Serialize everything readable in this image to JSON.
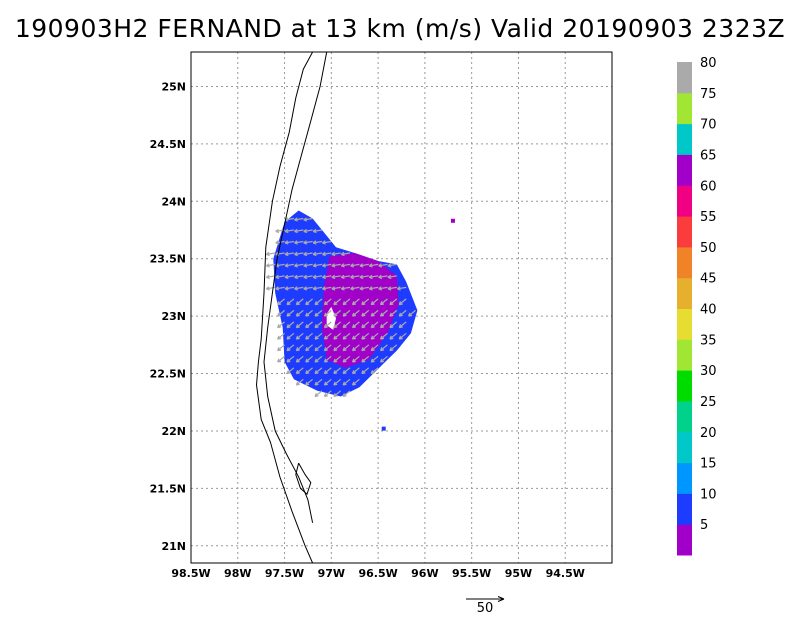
{
  "title": "190903H2 FERNAND at 13 km (m/s) Valid 20190903 2323Z",
  "map": {
    "lon_range": [
      -98.5,
      -94.0
    ],
    "lat_range": [
      20.85,
      25.3
    ],
    "x_ticks": [
      {
        "lon": -98.5,
        "label": "98.5W"
      },
      {
        "lon": -98.0,
        "label": "98W"
      },
      {
        "lon": -97.5,
        "label": "97.5W"
      },
      {
        "lon": -97.0,
        "label": "97W"
      },
      {
        "lon": -96.5,
        "label": "96.5W"
      },
      {
        "lon": -96.0,
        "label": "96W"
      },
      {
        "lon": -95.5,
        "label": "95.5W"
      },
      {
        "lon": -95.0,
        "label": "95W"
      },
      {
        "lon": -94.5,
        "label": "94.5W"
      }
    ],
    "y_ticks": [
      {
        "lat": 25.0,
        "label": "25N"
      },
      {
        "lat": 24.5,
        "label": "24.5N"
      },
      {
        "lat": 24.0,
        "label": "24N"
      },
      {
        "lat": 23.5,
        "label": "23.5N"
      },
      {
        "lat": 23.0,
        "label": "23N"
      },
      {
        "lat": 22.5,
        "label": "22.5N"
      },
      {
        "lat": 22.0,
        "label": "22N"
      },
      {
        "lat": 21.5,
        "label": "21.5N"
      },
      {
        "lat": 21.0,
        "label": "21N"
      }
    ],
    "grid": true,
    "coastline": [
      [
        -97.2,
        25.3
      ],
      [
        -97.3,
        25.15
      ],
      [
        -97.38,
        24.9
      ],
      [
        -97.45,
        24.6
      ],
      [
        -97.55,
        24.3
      ],
      [
        -97.63,
        24.0
      ],
      [
        -97.7,
        23.6
      ],
      [
        -97.72,
        23.2
      ],
      [
        -97.75,
        22.8
      ],
      [
        -97.78,
        22.6
      ],
      [
        -97.8,
        22.4
      ],
      [
        -97.75,
        22.1
      ],
      [
        -97.65,
        21.9
      ],
      [
        -97.55,
        21.6
      ],
      [
        -97.42,
        21.3
      ],
      [
        -97.28,
        21.0
      ],
      [
        -97.2,
        20.85
      ]
    ],
    "barrier": [
      [
        -97.05,
        25.3
      ],
      [
        -97.12,
        25.0
      ],
      [
        -97.22,
        24.7
      ],
      [
        -97.32,
        24.4
      ],
      [
        -97.42,
        24.1
      ],
      [
        -97.5,
        23.8
      ],
      [
        -97.58,
        23.5
      ],
      [
        -97.63,
        23.2
      ],
      [
        -97.68,
        22.9
      ],
      [
        -97.72,
        22.6
      ],
      [
        -97.68,
        22.3
      ],
      [
        -97.6,
        22.0
      ],
      [
        -97.48,
        21.8
      ],
      [
        -97.35,
        21.6
      ],
      [
        -97.25,
        21.4
      ],
      [
        -97.2,
        21.2
      ]
    ],
    "lagoon": [
      [
        -97.35,
        21.72
      ],
      [
        -97.28,
        21.62
      ],
      [
        -97.22,
        21.55
      ],
      [
        -97.26,
        21.45
      ],
      [
        -97.33,
        21.5
      ],
      [
        -97.38,
        21.62
      ],
      [
        -97.35,
        21.72
      ]
    ],
    "wind_field": {
      "region_10_15": [
        [
          -97.5,
          23.82
        ],
        [
          -97.35,
          23.92
        ],
        [
          -97.2,
          23.85
        ],
        [
          -97.05,
          23.7
        ],
        [
          -96.95,
          23.6
        ],
        [
          -96.75,
          23.55
        ],
        [
          -96.5,
          23.48
        ],
        [
          -96.3,
          23.45
        ],
        [
          -96.2,
          23.3
        ],
        [
          -96.08,
          23.05
        ],
        [
          -96.15,
          22.85
        ],
        [
          -96.3,
          22.7
        ],
        [
          -96.55,
          22.5
        ],
        [
          -96.7,
          22.38
        ],
        [
          -96.9,
          22.3
        ],
        [
          -97.15,
          22.35
        ],
        [
          -97.4,
          22.45
        ],
        [
          -97.5,
          22.6
        ],
        [
          -97.52,
          22.9
        ],
        [
          -97.6,
          23.2
        ],
        [
          -97.62,
          23.5
        ]
      ],
      "region_5_10": [
        [
          -97.02,
          23.52
        ],
        [
          -96.75,
          23.55
        ],
        [
          -96.5,
          23.48
        ],
        [
          -96.3,
          23.35
        ],
        [
          -96.28,
          23.1
        ],
        [
          -96.4,
          22.85
        ],
        [
          -96.6,
          22.62
        ],
        [
          -96.85,
          22.55
        ],
        [
          -97.05,
          22.62
        ],
        [
          -97.1,
          22.9
        ],
        [
          -97.08,
          23.25
        ]
      ],
      "gap": [
        [
          -97.0,
          23.08
        ],
        [
          -96.95,
          22.98
        ],
        [
          -96.98,
          22.88
        ],
        [
          -97.05,
          22.92
        ],
        [
          -97.05,
          23.02
        ]
      ],
      "isolated_cells": [
        {
          "lon": -95.7,
          "lat": 23.83,
          "value": 5
        },
        {
          "lon": -96.44,
          "lat": 22.02,
          "value": 10
        }
      ],
      "vector_color": "#aaaaaa",
      "reference_vector_label": "50"
    }
  },
  "colorbar": {
    "colors": [
      "#a000c8",
      "#1e3cff",
      "#0096ff",
      "#00c8c8",
      "#00d28c",
      "#00dc00",
      "#a0e632",
      "#e6dc32",
      "#e6af2d",
      "#f08228",
      "#fa3c3c",
      "#f00082",
      "#a000c8",
      "#00c8c8",
      "#a0e632",
      "#aaaaaa"
    ],
    "labels": [
      "5",
      "10",
      "15",
      "20",
      "25",
      "30",
      "35",
      "40",
      "45",
      "50",
      "55",
      "60",
      "65",
      "70",
      "75",
      "80"
    ]
  }
}
